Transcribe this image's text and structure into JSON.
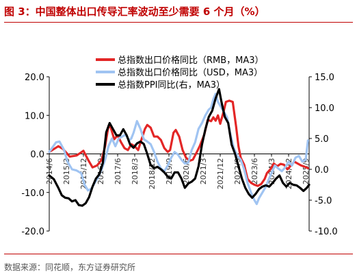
{
  "figure": {
    "title": "图 3：中国整体出口传导汇率波动至少需要 6 个月（%）",
    "source": "数据来源：同花顺，东方证券研究所"
  },
  "colors": {
    "rmb": "#e32626",
    "usd": "#a0c4f2",
    "ppi": "#000000",
    "title": "#c00000"
  },
  "chart_data": {
    "type": "line",
    "x_tick_labels": [
      "2014/6",
      "2015/3",
      "2015/12",
      "2016/9",
      "2017/6",
      "2018/3",
      "2018/12",
      "2019/9",
      "2020/6",
      "2021/3",
      "2021/12",
      "2022/9",
      "2023/6",
      "2024/3",
      "2024/12",
      "2025/9"
    ],
    "y_left": {
      "range": [
        -20,
        20
      ],
      "ticks": [
        "20.0",
        "10.0",
        "0.0",
        "-10.0",
        "-20.0"
      ]
    },
    "y_right": {
      "range": [
        -10,
        15
      ],
      "ticks": [
        "15.0",
        "10.0",
        "5.0",
        "0.0",
        "-5.0",
        "-10.0"
      ]
    },
    "legend": {
      "placement": "top-center"
    },
    "series": [
      {
        "name": "总指数出口价格同比（RMB，MA3）",
        "axis": "left",
        "color_key": "rmb",
        "values": [
          [
            2014.5,
            0.5
          ],
          [
            2014.9,
            2.0
          ],
          [
            2015.1,
            1.3
          ],
          [
            2015.4,
            -0.7
          ],
          [
            2015.7,
            -0.4
          ],
          [
            2015.9,
            0.4
          ],
          [
            2016.0,
            0.8
          ],
          [
            2016.2,
            -1.5
          ],
          [
            2016.4,
            -3.5
          ],
          [
            2016.6,
            -3.0
          ],
          [
            2016.8,
            -1.5
          ],
          [
            2016.95,
            2.0
          ],
          [
            2017.1,
            7.3
          ],
          [
            2017.2,
            6.8
          ],
          [
            2017.35,
            3.8
          ],
          [
            2017.5,
            4.8
          ],
          [
            2017.65,
            3.0
          ],
          [
            2017.8,
            1.5
          ],
          [
            2017.95,
            1.0
          ],
          [
            2018.1,
            2.5
          ],
          [
            2018.25,
            2.0
          ],
          [
            2018.4,
            1.0
          ],
          [
            2018.55,
            3.8
          ],
          [
            2018.7,
            6.5
          ],
          [
            2018.8,
            7.5
          ],
          [
            2018.95,
            6.8
          ],
          [
            2019.1,
            4.5
          ],
          [
            2019.25,
            4.5
          ],
          [
            2019.4,
            3.6
          ],
          [
            2019.55,
            1.5
          ],
          [
            2019.7,
            0.5
          ],
          [
            2019.8,
            1.0
          ],
          [
            2019.95,
            5.5
          ],
          [
            2020.05,
            6.2
          ],
          [
            2020.2,
            4.5
          ],
          [
            2020.35,
            1.0
          ],
          [
            2020.5,
            -1.0
          ],
          [
            2020.65,
            -1.8
          ],
          [
            2020.8,
            -1.5
          ],
          [
            2020.95,
            0.2
          ],
          [
            2021.1,
            2.0
          ],
          [
            2021.3,
            5.0
          ],
          [
            2021.45,
            8.8
          ],
          [
            2021.6,
            8.5
          ],
          [
            2021.7,
            9.5
          ],
          [
            2021.8,
            8.6
          ],
          [
            2021.9,
            10.0
          ],
          [
            2022.0,
            7.8
          ],
          [
            2022.15,
            11.0
          ],
          [
            2022.25,
            13.5
          ],
          [
            2022.4,
            13.8
          ],
          [
            2022.55,
            13.5
          ],
          [
            2022.7,
            7.0
          ],
          [
            2022.8,
            2.0
          ],
          [
            2022.9,
            -1.0
          ],
          [
            2023.05,
            -2.8
          ],
          [
            2023.2,
            -6.5
          ],
          [
            2023.35,
            -7.5
          ],
          [
            2023.5,
            -8.0
          ],
          [
            2023.65,
            -8.3
          ],
          [
            2023.8,
            -7.8
          ],
          [
            2023.95,
            -6.5
          ],
          [
            2024.05,
            -5.0
          ],
          [
            2024.2,
            -4.0
          ],
          [
            2024.35,
            -2.5
          ],
          [
            2024.5,
            -3.2
          ],
          [
            2024.65,
            -2.6
          ],
          [
            2024.8,
            -2.8
          ],
          [
            2024.95,
            -4.0
          ],
          [
            2025.1,
            -3.0
          ],
          [
            2025.25,
            -2.0
          ],
          [
            2025.4,
            -2.5
          ],
          [
            2025.55,
            -3.0
          ],
          [
            2025.7,
            -3.3
          ],
          [
            2025.85,
            -3.7
          ]
        ]
      },
      {
        "name": "总指数出口价格同比（USD，MA3）",
        "axis": "left",
        "color_key": "usd",
        "values": [
          [
            2014.5,
            0.5
          ],
          [
            2014.8,
            3.0
          ],
          [
            2014.95,
            3.2
          ],
          [
            2015.15,
            1.0
          ],
          [
            2015.3,
            -2.0
          ],
          [
            2015.5,
            -4.0
          ],
          [
            2015.7,
            -4.3
          ],
          [
            2015.9,
            -5.0
          ],
          [
            2016.05,
            -8.0
          ],
          [
            2016.2,
            -9.5
          ],
          [
            2016.35,
            -9.0
          ],
          [
            2016.5,
            -7.5
          ],
          [
            2016.65,
            -6.0
          ],
          [
            2016.8,
            -4.0
          ],
          [
            2016.95,
            -1.5
          ],
          [
            2017.1,
            2.0
          ],
          [
            2017.25,
            4.0
          ],
          [
            2017.4,
            2.0
          ],
          [
            2017.55,
            4.0
          ],
          [
            2017.7,
            4.5
          ],
          [
            2017.85,
            5.0
          ],
          [
            2018.0,
            3.5
          ],
          [
            2018.1,
            4.0
          ],
          [
            2018.2,
            5.5
          ],
          [
            2018.35,
            8.5
          ],
          [
            2018.5,
            6.5
          ],
          [
            2018.65,
            3.8
          ],
          [
            2018.8,
            3.2
          ],
          [
            2018.95,
            2.5
          ],
          [
            2019.1,
            0.5
          ],
          [
            2019.25,
            -2.0
          ],
          [
            2019.4,
            -3.8
          ],
          [
            2019.55,
            -4.5
          ],
          [
            2019.7,
            -3.0
          ],
          [
            2019.85,
            -1.0
          ],
          [
            2020.0,
            0.5
          ],
          [
            2020.15,
            -0.2
          ],
          [
            2020.3,
            -1.5
          ],
          [
            2020.45,
            -2.5
          ],
          [
            2020.6,
            -2.3
          ],
          [
            2020.75,
            1.0
          ],
          [
            2020.9,
            3.0
          ],
          [
            2021.05,
            6.5
          ],
          [
            2021.2,
            8.0
          ],
          [
            2021.35,
            10.0
          ],
          [
            2021.5,
            11.5
          ],
          [
            2021.6,
            12.0
          ],
          [
            2021.7,
            14.2
          ],
          [
            2021.8,
            15.6
          ],
          [
            2021.9,
            13.5
          ],
          [
            2022.0,
            12.5
          ],
          [
            2022.15,
            11.0
          ],
          [
            2022.3,
            9.5
          ],
          [
            2022.45,
            5.0
          ],
          [
            2022.6,
            1.5
          ],
          [
            2022.75,
            -0.5
          ],
          [
            2022.9,
            -1.5
          ],
          [
            2023.05,
            -4.0
          ],
          [
            2023.2,
            -7.5
          ],
          [
            2023.35,
            -10.0
          ],
          [
            2023.5,
            -12.0
          ],
          [
            2023.6,
            -13.0
          ],
          [
            2023.7,
            -11.5
          ],
          [
            2023.85,
            -10.0
          ],
          [
            2024.0,
            -8.5
          ],
          [
            2024.1,
            -7.0
          ],
          [
            2024.25,
            -5.0
          ],
          [
            2024.4,
            -3.0
          ],
          [
            2024.55,
            -3.8
          ],
          [
            2024.7,
            -4.5
          ],
          [
            2024.85,
            -3.5
          ],
          [
            2025.0,
            -2.0
          ],
          [
            2025.15,
            -3.0
          ],
          [
            2025.3,
            -1.0
          ],
          [
            2025.45,
            -0.5
          ],
          [
            2025.6,
            -2.0
          ],
          [
            2025.75,
            -1.5
          ],
          [
            2025.85,
            3.5
          ]
        ]
      },
      {
        "name": "总指数PPI同比(右，MA3）",
        "axis": "right",
        "color_key": "ppi",
        "values": [
          [
            2014.5,
            -1.0
          ],
          [
            2014.7,
            -1.6
          ],
          [
            2014.9,
            -3.0
          ],
          [
            2015.05,
            -4.2
          ],
          [
            2015.2,
            -4.6
          ],
          [
            2015.35,
            -4.7
          ],
          [
            2015.5,
            -5.2
          ],
          [
            2015.65,
            -5.0
          ],
          [
            2015.8,
            -5.8
          ],
          [
            2015.95,
            -5.9
          ],
          [
            2016.1,
            -5.5
          ],
          [
            2016.25,
            -4.5
          ],
          [
            2016.4,
            -2.8
          ],
          [
            2016.55,
            -1.5
          ],
          [
            2016.7,
            -0.8
          ],
          [
            2016.85,
            1.0
          ],
          [
            2017.0,
            6.0
          ],
          [
            2017.15,
            7.5
          ],
          [
            2017.3,
            6.5
          ],
          [
            2017.45,
            5.5
          ],
          [
            2017.6,
            5.5
          ],
          [
            2017.75,
            6.5
          ],
          [
            2017.9,
            5.5
          ],
          [
            2018.05,
            4.0
          ],
          [
            2018.2,
            3.5
          ],
          [
            2018.35,
            4.2
          ],
          [
            2018.5,
            4.5
          ],
          [
            2018.65,
            4.1
          ],
          [
            2018.8,
            2.5
          ],
          [
            2018.95,
            0.7
          ],
          [
            2019.1,
            0.2
          ],
          [
            2019.25,
            0.4
          ],
          [
            2019.4,
            0.0
          ],
          [
            2019.55,
            -0.5
          ],
          [
            2019.7,
            -1.2
          ],
          [
            2019.85,
            -1.5
          ],
          [
            2020.0,
            -0.5
          ],
          [
            2020.15,
            -0.5
          ],
          [
            2020.3,
            -1.5
          ],
          [
            2020.45,
            -3.0
          ],
          [
            2020.6,
            -2.3
          ],
          [
            2020.75,
            -2.0
          ],
          [
            2020.9,
            -1.5
          ],
          [
            2021.05,
            0.5
          ],
          [
            2021.2,
            4.0
          ],
          [
            2021.35,
            6.5
          ],
          [
            2021.5,
            8.5
          ],
          [
            2021.65,
            9.5
          ],
          [
            2021.8,
            11.5
          ],
          [
            2021.95,
            13.0
          ],
          [
            2022.05,
            11.0
          ],
          [
            2022.2,
            8.5
          ],
          [
            2022.35,
            7.5
          ],
          [
            2022.5,
            4.0
          ],
          [
            2022.65,
            2.5
          ],
          [
            2022.8,
            0.5
          ],
          [
            2022.95,
            -1.5
          ],
          [
            2023.1,
            -3.0
          ],
          [
            2023.25,
            -4.0
          ],
          [
            2023.4,
            -4.6
          ],
          [
            2023.55,
            -4.0
          ],
          [
            2023.7,
            -3.2
          ],
          [
            2023.85,
            -2.8
          ],
          [
            2024.0,
            -2.6
          ],
          [
            2024.15,
            -2.8
          ],
          [
            2024.3,
            -2.2
          ],
          [
            2024.45,
            -1.5
          ],
          [
            2024.6,
            -1.0
          ],
          [
            2024.75,
            -2.2
          ],
          [
            2024.9,
            -2.8
          ],
          [
            2025.05,
            -2.2
          ],
          [
            2025.2,
            -2.5
          ],
          [
            2025.35,
            -2.6
          ],
          [
            2025.5,
            -3.0
          ],
          [
            2025.65,
            -3.5
          ],
          [
            2025.8,
            -3.0
          ],
          [
            2025.9,
            -2.5
          ]
        ]
      }
    ]
  }
}
